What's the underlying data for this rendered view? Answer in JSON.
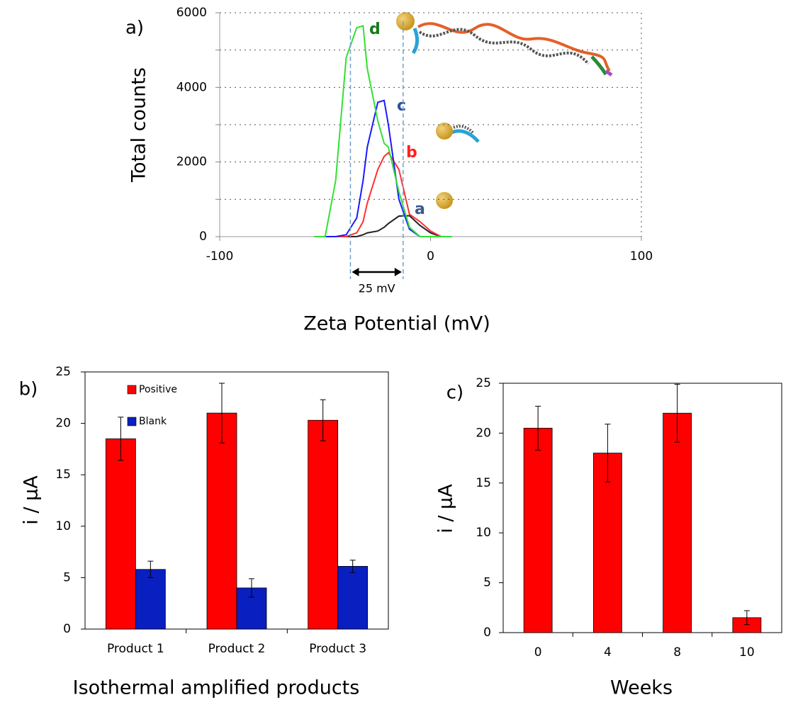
{
  "chart_data": [
    {
      "type": "line",
      "panel_label": "a)",
      "xlabel": "Zeta Potential (mV)",
      "ylabel": "Total counts",
      "x": [
        -55,
        -50,
        -45,
        -40,
        -35,
        -32,
        -30,
        -25,
        -22,
        -20,
        -15,
        -10,
        -5,
        0,
        5,
        10
      ],
      "series": [
        {
          "name": "a",
          "color": "#222222",
          "label_color": "#3a5a8a",
          "values": [
            0,
            0,
            0,
            0,
            0,
            50,
            100,
            150,
            250,
            350,
            550,
            560,
            300,
            100,
            0,
            0
          ]
        },
        {
          "name": "b",
          "color": "#ff3030",
          "label_color": "#ff2020",
          "values": [
            0,
            0,
            0,
            0,
            100,
            400,
            900,
            1800,
            2150,
            2250,
            1800,
            600,
            400,
            150,
            0,
            0
          ]
        },
        {
          "name": "c",
          "color": "#1a1aff",
          "label_color": "#2f4f9f",
          "values": [
            0,
            0,
            0,
            50,
            500,
            1500,
            2400,
            3600,
            3650,
            3000,
            1000,
            200,
            0,
            0,
            0,
            0
          ]
        },
        {
          "name": "d",
          "color": "#33e033",
          "label_color": "#1a7a1a",
          "values": [
            0,
            0,
            1500,
            4800,
            5600,
            5650,
            4500,
            3100,
            2500,
            2400,
            1200,
            250,
            0,
            0,
            0,
            0
          ]
        }
      ],
      "xlim": [
        -100,
        100
      ],
      "xticks": [
        -100,
        0,
        100
      ],
      "ylim": [
        0,
        6000
      ],
      "yticks": [
        0,
        2000,
        4000,
        6000
      ],
      "minor_yticks": [
        1000,
        3000,
        5000
      ],
      "grid": true,
      "reference_lines": [
        -38,
        -13
      ],
      "annotation": "25 mV"
    },
    {
      "type": "bar",
      "panel_label": "b)",
      "xlabel": "Isothermal amplified products",
      "ylabel": "i / μA",
      "categories": [
        "Product 1",
        "Product 2",
        "Product 3"
      ],
      "series": [
        {
          "name": "Positive",
          "color": "#ff0000",
          "values": [
            18.5,
            21,
            20.3
          ],
          "errors": [
            2.1,
            2.9,
            2.0
          ]
        },
        {
          "name": "Blank",
          "color": "#0a1fc0",
          "values": [
            5.8,
            4.0,
            6.1
          ],
          "errors": [
            0.8,
            0.9,
            0.6
          ]
        }
      ],
      "ylim": [
        0,
        25
      ],
      "yticks": [
        0,
        5,
        10,
        15,
        20,
        25
      ],
      "legend": "upper left"
    },
    {
      "type": "bar",
      "panel_label": "c)",
      "xlabel": "Weeks",
      "ylabel": "i / μA",
      "categories": [
        "0",
        "4",
        "8",
        "10"
      ],
      "color": "#ff0000",
      "values": [
        20.5,
        18,
        22,
        1.5
      ],
      "errors": [
        2.2,
        2.9,
        2.9,
        0.7
      ],
      "ylim": [
        0,
        25
      ],
      "yticks": [
        0,
        5,
        10,
        15,
        20,
        25
      ]
    }
  ]
}
